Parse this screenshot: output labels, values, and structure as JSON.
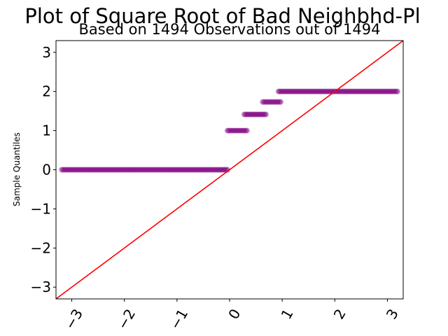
{
  "chart_data": {
    "type": "scatter",
    "title": "Plot of Square Root of Bad Neighbhd-Pl",
    "subtitle": "Based on 1494 Observations out of 1494",
    "xlabel": "",
    "ylabel": "Sample Quantiles",
    "xlim": [
      -3.3,
      3.3
    ],
    "ylim": [
      -3.3,
      3.3
    ],
    "x_ticks": [
      -3,
      -2,
      -1,
      0,
      1,
      2,
      3
    ],
    "x_tick_labels": [
      "−3",
      "−2",
      "−1",
      "0",
      "1",
      "2",
      "3"
    ],
    "y_ticks": [
      -3,
      -2,
      -1,
      0,
      1,
      2,
      3
    ],
    "y_tick_labels": [
      "−3",
      "−2",
      "−1",
      "0",
      "1",
      "2",
      "3"
    ],
    "grid": false,
    "point_color": "#800080",
    "point_alpha": 0.5,
    "line_color": "#ff0000",
    "reference_line": {
      "slope": 1,
      "intercept": 0
    },
    "point_groups": [
      {
        "y": 0,
        "x_start": -3.19,
        "x_end": -0.04
      },
      {
        "y": 1,
        "x_start": -0.04,
        "x_end": 0.33
      },
      {
        "y": 1.414,
        "x_start": 0.28,
        "x_end": 0.69
      },
      {
        "y": 1.732,
        "x_start": 0.63,
        "x_end": 0.97
      },
      {
        "y": 2,
        "x_start": 0.93,
        "x_end": 3.19
      }
    ]
  }
}
